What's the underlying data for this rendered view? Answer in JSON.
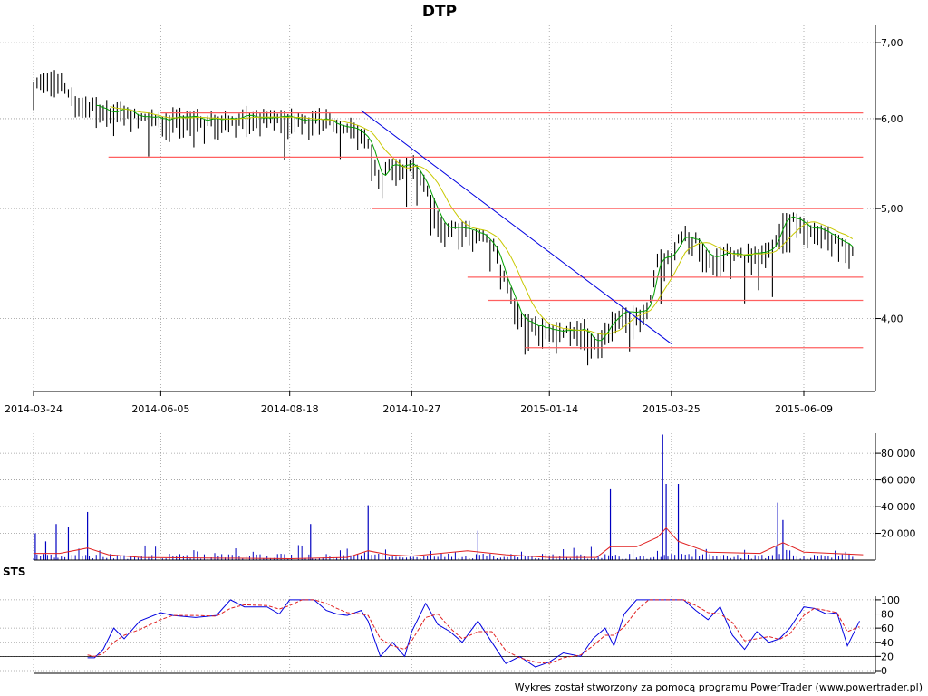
{
  "chart_data": [
    {
      "panel": "price",
      "type": "bar",
      "title": "DTP",
      "x_tick_labels": [
        "2014-03-24",
        "2014-06-05",
        "2014-08-18",
        "2014-10-27",
        "2015-01-14",
        "2015-03-25",
        "2015-06-09"
      ],
      "y_tick_labels": [
        "7,00",
        "6,00",
        "5,00",
        "4,00"
      ],
      "y_ticks": [
        7,
        6,
        5,
        4
      ],
      "ylim": [
        3.45,
        7.25
      ],
      "y_scale": "log",
      "grid": true,
      "close_points": [
        [
          "2014-03-24",
          6.4
        ],
        [
          "2014-03-29",
          6.5
        ],
        [
          "2014-04-03",
          6.6
        ],
        [
          "2014-04-08",
          6.5
        ],
        [
          "2014-04-14",
          6.3
        ],
        [
          "2014-04-20",
          6.2
        ],
        [
          "2014-04-27",
          6.15
        ],
        [
          "2014-05-06",
          6.1
        ],
        [
          "2014-05-16",
          6.1
        ],
        [
          "2014-05-25",
          6.02
        ],
        [
          "2014-06-05",
          6.0
        ],
        [
          "2014-06-20",
          6.0
        ],
        [
          "2014-07-07",
          6.0
        ],
        [
          "2014-07-25",
          6.02
        ],
        [
          "2014-08-05",
          6.0
        ],
        [
          "2014-08-18",
          6.02
        ],
        [
          "2014-08-28",
          6.0
        ],
        [
          "2014-09-08",
          6.0
        ],
        [
          "2014-09-20",
          5.9
        ],
        [
          "2014-09-28",
          5.85
        ],
        [
          "2014-10-04",
          5.65
        ],
        [
          "2014-10-09",
          5.3
        ],
        [
          "2014-10-14",
          5.45
        ],
        [
          "2014-10-20",
          5.45
        ],
        [
          "2014-10-27",
          5.5
        ],
        [
          "2014-11-02",
          5.3
        ],
        [
          "2014-11-08",
          5.05
        ],
        [
          "2014-11-14",
          4.8
        ],
        [
          "2014-11-20",
          4.8
        ],
        [
          "2014-11-28",
          4.8
        ],
        [
          "2014-12-08",
          4.75
        ],
        [
          "2014-12-14",
          4.6
        ],
        [
          "2014-12-20",
          4.3
        ],
        [
          "2014-12-28",
          4.0
        ],
        [
          "2015-01-05",
          3.95
        ],
        [
          "2015-01-14",
          3.92
        ],
        [
          "2015-01-25",
          3.9
        ],
        [
          "2015-02-03",
          3.92
        ],
        [
          "2015-02-10",
          3.8
        ],
        [
          "2015-02-17",
          3.95
        ],
        [
          "2015-02-24",
          4.05
        ],
        [
          "2015-03-05",
          4.05
        ],
        [
          "2015-03-12",
          4.1
        ],
        [
          "2015-03-17",
          4.5
        ],
        [
          "2015-03-25",
          4.55
        ],
        [
          "2015-04-01",
          4.75
        ],
        [
          "2015-04-08",
          4.7
        ],
        [
          "2015-04-15",
          4.55
        ],
        [
          "2015-04-25",
          4.55
        ],
        [
          "2015-05-05",
          4.55
        ],
        [
          "2015-05-15",
          4.55
        ],
        [
          "2015-05-22",
          4.6
        ],
        [
          "2015-05-28",
          4.9
        ],
        [
          "2015-06-05",
          4.9
        ],
        [
          "2015-06-09",
          4.85
        ],
        [
          "2015-06-15",
          4.8
        ],
        [
          "2015-06-22",
          4.75
        ],
        [
          "2015-06-28",
          4.7
        ],
        [
          "2015-07-03",
          4.65
        ],
        [
          "2015-07-08",
          4.6
        ]
      ],
      "series": [
        {
          "name": "",
          "color": "#000000",
          "style": "hl-bars"
        },
        {
          "name": "",
          "color": "#00a000",
          "style": "line"
        },
        {
          "name": "",
          "color": "#c8c800",
          "style": "line"
        },
        {
          "name": "",
          "color": "#0000e0",
          "style": "trend-line",
          "x": [
            "2014-09-28",
            "2015-03-25"
          ],
          "y": [
            6.1,
            3.8
          ]
        }
      ],
      "horizontal_levels": [
        {
          "y": 6.07,
          "x": [
            "2014-06-05",
            "2015-07-13"
          ]
        },
        {
          "y": 5.55,
          "x": [
            "2014-05-06",
            "2015-07-13"
          ]
        },
        {
          "y": 5.0,
          "x": [
            "2014-10-04",
            "2015-07-13"
          ]
        },
        {
          "y": 4.35,
          "x": [
            "2014-11-28",
            "2015-07-13"
          ]
        },
        {
          "y": 4.15,
          "x": [
            "2014-12-10",
            "2015-07-13"
          ]
        },
        {
          "y": 3.77,
          "x": [
            "2014-12-31",
            "2015-07-13"
          ]
        }
      ],
      "level_color": "#ff6060"
    },
    {
      "panel": "volume",
      "type": "bar",
      "y_tick_labels": [
        "80 000",
        "60 000",
        "40 000",
        "20 000"
      ],
      "y_ticks": [
        80000,
        60000,
        40000,
        20000
      ],
      "ylim": [
        0,
        95000
      ],
      "grid": true,
      "spikes": [
        [
          "2014-03-25",
          20000
        ],
        [
          "2014-03-31",
          14000
        ],
        [
          "2014-04-06",
          27000
        ],
        [
          "2014-04-13",
          25000
        ],
        [
          "2014-04-24",
          36000
        ],
        [
          "2014-08-30",
          27000
        ],
        [
          "2014-10-02",
          41000
        ],
        [
          "2014-12-04",
          22000
        ],
        [
          "2015-02-18",
          53000
        ],
        [
          "2015-03-20",
          94000
        ],
        [
          "2015-03-22",
          57000
        ],
        [
          "2015-03-29",
          57000
        ],
        [
          "2015-05-25",
          43000
        ],
        [
          "2015-05-28",
          30000
        ]
      ],
      "series": [
        {
          "name": "",
          "color": "#0000c0",
          "style": "bars"
        },
        {
          "name": "",
          "color": "#e02020",
          "style": "line",
          "x": [
            "2014-03-24",
            "2014-04-08",
            "2014-04-24",
            "2014-05-06",
            "2014-05-25",
            "2014-08-18",
            "2014-09-20",
            "2014-10-02",
            "2014-10-14",
            "2014-10-27",
            "2014-11-28",
            "2014-12-20",
            "2015-01-14",
            "2015-02-10",
            "2015-02-18",
            "2015-03-05",
            "2015-03-17",
            "2015-03-22",
            "2015-03-29",
            "2015-04-15",
            "2015-05-15",
            "2015-05-28",
            "2015-06-09",
            "2015-07-13"
          ],
          "y": [
            5000,
            5000,
            9000,
            4000,
            2000,
            1000,
            2000,
            7000,
            4000,
            3000,
            7000,
            4000,
            2000,
            2000,
            10000,
            10000,
            17000,
            24000,
            14000,
            6000,
            5000,
            13000,
            6000,
            4000
          ]
        }
      ]
    },
    {
      "panel": "oscillator",
      "type": "line",
      "label": "STS",
      "y_tick_labels": [
        "100",
        "80",
        "60",
        "40",
        "20",
        "0"
      ],
      "y_ticks": [
        100,
        80,
        60,
        40,
        20,
        0
      ],
      "ylim": [
        0,
        105
      ],
      "reference_lines": [
        80,
        20
      ],
      "grid": true,
      "series": [
        {
          "name": "",
          "color": "#0000e0",
          "x": [
            "2014-04-24",
            "2014-04-28",
            "2014-05-03",
            "2014-05-09",
            "2014-05-15",
            "2014-05-24",
            "2014-06-05",
            "2014-06-12",
            "2014-06-25",
            "2014-07-07",
            "2014-07-15",
            "2014-07-23",
            "2014-08-05",
            "2014-08-12",
            "2014-08-18",
            "2014-08-25",
            "2014-09-01",
            "2014-09-08",
            "2014-09-14",
            "2014-09-20",
            "2014-09-28",
            "2014-10-02",
            "2014-10-09",
            "2014-10-16",
            "2014-10-23",
            "2014-10-27",
            "2014-11-04",
            "2014-11-11",
            "2014-11-18",
            "2014-11-25",
            "2014-12-04",
            "2014-12-12",
            "2014-12-20",
            "2014-12-28",
            "2015-01-06",
            "2015-01-14",
            "2015-01-22",
            "2015-02-01",
            "2015-02-08",
            "2015-02-15",
            "2015-02-20",
            "2015-02-26",
            "2015-03-05",
            "2015-03-12",
            "2015-03-19",
            "2015-03-25",
            "2015-04-01",
            "2015-04-08",
            "2015-04-15",
            "2015-04-22",
            "2015-04-29",
            "2015-05-06",
            "2015-05-13",
            "2015-05-20",
            "2015-05-26",
            "2015-06-01",
            "2015-06-09",
            "2015-06-15",
            "2015-06-22",
            "2015-06-28",
            "2015-07-04",
            "2015-07-11"
          ],
          "y": [
            18,
            18,
            30,
            60,
            45,
            70,
            82,
            78,
            75,
            78,
            100,
            90,
            90,
            80,
            100,
            100,
            100,
            85,
            80,
            78,
            85,
            70,
            20,
            40,
            20,
            55,
            95,
            65,
            55,
            40,
            70,
            40,
            10,
            20,
            5,
            12,
            25,
            20,
            45,
            60,
            35,
            80,
            100,
            100,
            100,
            100,
            100,
            85,
            72,
            90,
            50,
            30,
            55,
            40,
            45,
            60,
            90,
            88,
            80,
            82,
            35,
            70
          ]
        },
        {
          "name": "",
          "color": "#e02020",
          "x": [
            "2014-04-24",
            "2014-04-28",
            "2014-05-03",
            "2014-05-09",
            "2014-05-15",
            "2014-05-24",
            "2014-06-05",
            "2014-06-12",
            "2014-06-25",
            "2014-07-07",
            "2014-07-15",
            "2014-07-23",
            "2014-08-05",
            "2014-08-12",
            "2014-08-18",
            "2014-08-25",
            "2014-09-01",
            "2014-09-08",
            "2014-09-14",
            "2014-09-20",
            "2014-09-28",
            "2014-10-02",
            "2014-10-09",
            "2014-10-16",
            "2014-10-23",
            "2014-10-27",
            "2014-11-04",
            "2014-11-11",
            "2014-11-18",
            "2014-11-25",
            "2014-12-04",
            "2014-12-12",
            "2014-12-20",
            "2014-12-28",
            "2015-01-06",
            "2015-01-14",
            "2015-01-22",
            "2015-02-01",
            "2015-02-08",
            "2015-02-15",
            "2015-02-20",
            "2015-02-26",
            "2015-03-05",
            "2015-03-12",
            "2015-03-19",
            "2015-03-25",
            "2015-04-01",
            "2015-04-08",
            "2015-04-15",
            "2015-04-22",
            "2015-04-29",
            "2015-05-06",
            "2015-05-13",
            "2015-05-20",
            "2015-05-26",
            "2015-06-01",
            "2015-06-09",
            "2015-06-15",
            "2015-06-22",
            "2015-06-28",
            "2015-07-04",
            "2015-07-11"
          ],
          "y": [
            22,
            20,
            24,
            40,
            50,
            58,
            72,
            78,
            78,
            77,
            88,
            93,
            92,
            87,
            92,
            100,
            100,
            95,
            88,
            82,
            80,
            78,
            45,
            35,
            30,
            42,
            75,
            80,
            60,
            45,
            55,
            55,
            28,
            18,
            12,
            10,
            18,
            22,
            35,
            50,
            50,
            62,
            85,
            100,
            100,
            100,
            100,
            92,
            82,
            80,
            68,
            42,
            45,
            48,
            44,
            52,
            78,
            88,
            85,
            82,
            55,
            62
          ]
        }
      ]
    }
  ],
  "panels": {
    "oscillator_label": "STS"
  },
  "footer": "Wykres został stworzony za pomocą programu PowerTrader (www.powertrader.pl)"
}
